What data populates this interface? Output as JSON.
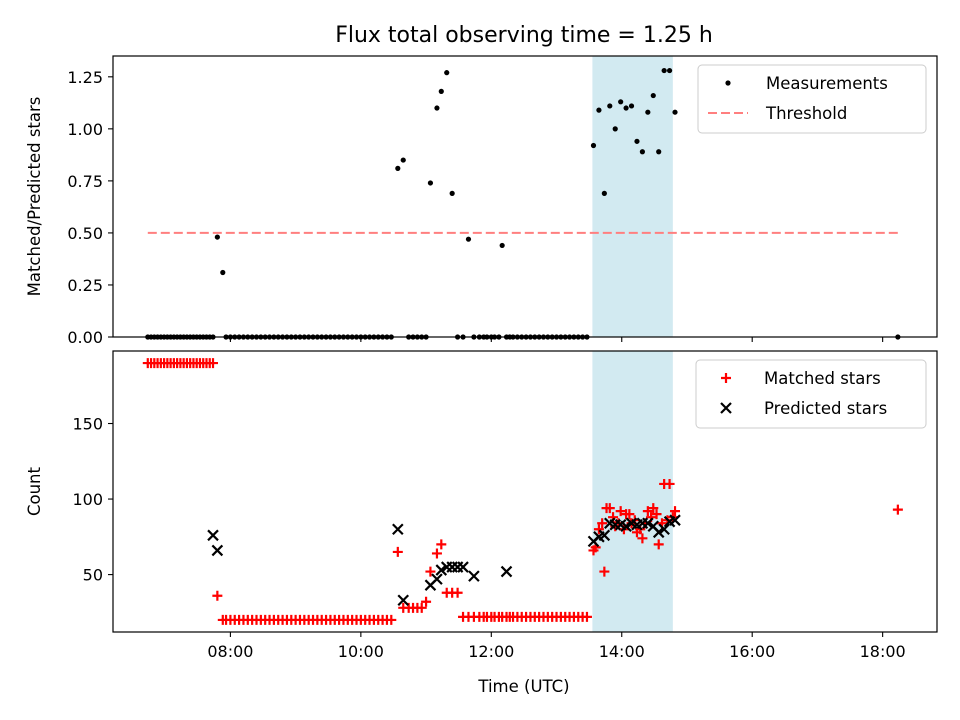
{
  "figure": {
    "title": "Flux total observing time = 1.25 h",
    "xlabel": "Time (UTC)"
  },
  "colors": {
    "measurement": "#000000",
    "threshold": "#ff7f7f",
    "matched": "#ff0000",
    "predicted": "#000000",
    "span": "#add8e6"
  },
  "chart_data": [
    {
      "type": "scatter",
      "ylabel": "Matched/Predicted stars",
      "ylim": [
        0,
        1.35
      ],
      "xlim": [
        "06:12",
        "18:50"
      ],
      "yticks": [
        0.0,
        0.25,
        0.5,
        0.75,
        1.0,
        1.25
      ],
      "ytick_labels": [
        "0.00",
        "0.25",
        "0.50",
        "0.75",
        "1.00",
        "1.25"
      ],
      "highlight_span": [
        "13:33",
        "14:47"
      ],
      "legend": {
        "position": "top-right",
        "entries": [
          "Measurements",
          "Threshold"
        ]
      },
      "threshold": {
        "name": "Threshold",
        "y": 0.5,
        "x_start": "06:44",
        "x_end": "18:14",
        "style": "dashed"
      },
      "series": [
        {
          "name": "Measurements",
          "x": [
            "06:44",
            "06:47",
            "06:50",
            "06:53",
            "06:56",
            "06:59",
            "07:02",
            "07:05",
            "07:08",
            "07:11",
            "07:14",
            "07:17",
            "07:20",
            "07:23",
            "07:26",
            "07:29",
            "07:32",
            "07:35",
            "07:38",
            "07:41",
            "07:44",
            "07:48",
            "07:53",
            "07:56",
            "08:00",
            "08:04",
            "08:08",
            "08:12",
            "08:16",
            "08:20",
            "08:24",
            "08:28",
            "08:32",
            "08:36",
            "08:40",
            "08:44",
            "08:48",
            "08:52",
            "08:56",
            "09:00",
            "09:04",
            "09:08",
            "09:12",
            "09:16",
            "09:20",
            "09:24",
            "09:28",
            "09:32",
            "09:36",
            "09:40",
            "09:44",
            "09:48",
            "09:52",
            "09:56",
            "10:00",
            "10:04",
            "10:08",
            "10:12",
            "10:16",
            "10:20",
            "10:24",
            "10:28",
            "10:34",
            "10:39",
            "10:44",
            "10:48",
            "10:52",
            "10:56",
            "11:00",
            "11:04",
            "11:10",
            "11:14",
            "11:19",
            "11:24",
            "11:29",
            "11:34",
            "11:39",
            "11:44",
            "11:49",
            "11:53",
            "11:56",
            "12:00",
            "12:03",
            "12:07",
            "12:10",
            "12:14",
            "12:17",
            "12:20",
            "12:24",
            "12:28",
            "12:32",
            "12:36",
            "12:40",
            "12:44",
            "12:48",
            "12:52",
            "12:56",
            "13:00",
            "13:04",
            "13:08",
            "13:12",
            "13:16",
            "13:20",
            "13:24",
            "13:28",
            "13:34",
            "13:39",
            "13:44",
            "13:49",
            "13:54",
            "13:59",
            "14:04",
            "14:09",
            "14:14",
            "14:19",
            "14:24",
            "14:29",
            "14:34",
            "14:39",
            "14:44",
            "14:49",
            "18:14"
          ],
          "y": [
            0,
            0,
            0,
            0,
            0,
            0,
            0,
            0,
            0,
            0,
            0,
            0,
            0,
            0,
            0,
            0,
            0,
            0,
            0,
            0,
            0,
            0.48,
            0.31,
            0,
            0,
            0,
            0,
            0,
            0,
            0,
            0,
            0,
            0,
            0,
            0,
            0,
            0,
            0,
            0,
            0,
            0,
            0,
            0,
            0,
            0,
            0,
            0,
            0,
            0,
            0,
            0,
            0,
            0,
            0,
            0,
            0,
            0,
            0,
            0,
            0,
            0,
            0,
            0.81,
            0.85,
            0,
            0,
            0,
            0,
            0,
            0.74,
            1.1,
            1.18,
            1.27,
            0.69,
            0,
            0,
            0.47,
            0,
            0,
            0,
            0,
            0,
            0,
            0,
            0.44,
            0,
            0,
            0,
            0,
            0,
            0,
            0,
            0,
            0,
            0,
            0,
            0,
            0,
            0,
            0,
            0,
            0,
            0,
            0,
            0,
            0.92,
            1.09,
            0.69,
            1.11,
            1.0,
            1.13,
            1.1,
            1.11,
            0.94,
            0.89,
            1.08,
            1.16,
            0.89,
            1.28,
            1.28,
            1.08,
            0
          ]
        }
      ]
    },
    {
      "type": "scatter",
      "ylabel": "Count",
      "ylim": [
        12,
        198
      ],
      "xlim": [
        "06:12",
        "18:50"
      ],
      "yticks": [
        50,
        100,
        150
      ],
      "ytick_labels": [
        "50",
        "100",
        "150"
      ],
      "xticks": [
        "08:00",
        "10:00",
        "12:00",
        "14:00",
        "16:00",
        "18:00"
      ],
      "xtick_labels": [
        "08:00",
        "10:00",
        "12:00",
        "14:00",
        "16:00",
        "18:00"
      ],
      "highlight_span": [
        "13:33",
        "14:47"
      ],
      "legend": {
        "position": "top-right",
        "entries": [
          "Matched stars",
          "Predicted stars"
        ]
      },
      "series": [
        {
          "name": "Matched stars",
          "marker": "plus",
          "x": [
            "06:44",
            "06:47",
            "06:50",
            "06:53",
            "06:56",
            "06:59",
            "07:02",
            "07:05",
            "07:08",
            "07:11",
            "07:14",
            "07:17",
            "07:20",
            "07:23",
            "07:26",
            "07:29",
            "07:32",
            "07:35",
            "07:38",
            "07:41",
            "07:44",
            "07:48",
            "07:53",
            "07:56",
            "08:00",
            "08:04",
            "08:08",
            "08:12",
            "08:16",
            "08:20",
            "08:24",
            "08:28",
            "08:32",
            "08:36",
            "08:40",
            "08:44",
            "08:48",
            "08:52",
            "08:56",
            "09:00",
            "09:04",
            "09:08",
            "09:12",
            "09:16",
            "09:20",
            "09:24",
            "09:28",
            "09:32",
            "09:36",
            "09:40",
            "09:44",
            "09:48",
            "09:52",
            "09:56",
            "10:00",
            "10:04",
            "10:08",
            "10:12",
            "10:16",
            "10:20",
            "10:24",
            "10:28",
            "10:34",
            "10:39",
            "10:44",
            "10:48",
            "10:52",
            "10:56",
            "11:00",
            "11:04",
            "11:10",
            "11:14",
            "11:19",
            "11:24",
            "11:29",
            "11:34",
            "11:39",
            "11:44",
            "11:49",
            "11:53",
            "11:56",
            "12:00",
            "12:03",
            "12:07",
            "12:10",
            "12:14",
            "12:17",
            "12:20",
            "12:24",
            "12:28",
            "12:32",
            "12:36",
            "12:40",
            "12:44",
            "12:48",
            "12:52",
            "12:56",
            "13:00",
            "13:04",
            "13:08",
            "13:12",
            "13:16",
            "13:20",
            "13:24",
            "13:28",
            "13:34",
            "13:39",
            "13:44",
            "13:49",
            "13:54",
            "13:59",
            "14:04",
            "14:09",
            "14:14",
            "14:19",
            "14:24",
            "14:29",
            "14:34",
            "14:39",
            "14:44",
            "14:49",
            "18:14",
            "13:36",
            "13:42",
            "13:46",
            "13:52",
            "13:57",
            "14:02",
            "14:07",
            "14:12",
            "14:17",
            "14:22",
            "14:27",
            "14:32",
            "14:37",
            "14:42",
            "14:47"
          ],
          "y": [
            190,
            190,
            190,
            190,
            190,
            190,
            190,
            190,
            190,
            190,
            190,
            190,
            190,
            190,
            190,
            190,
            190,
            190,
            190,
            190,
            190,
            36,
            20,
            20,
            20,
            20,
            20,
            20,
            20,
            20,
            20,
            20,
            20,
            20,
            20,
            20,
            20,
            20,
            20,
            20,
            20,
            20,
            20,
            20,
            20,
            20,
            20,
            20,
            20,
            20,
            20,
            20,
            20,
            20,
            20,
            20,
            20,
            20,
            20,
            20,
            20,
            20,
            65,
            28,
            28,
            28,
            28,
            28,
            32,
            52,
            64,
            70,
            38,
            38,
            38,
            22,
            22,
            22,
            22,
            22,
            22,
            22,
            22,
            22,
            22,
            22,
            22,
            22,
            22,
            22,
            22,
            22,
            22,
            22,
            22,
            22,
            22,
            22,
            22,
            22,
            22,
            22,
            22,
            22,
            22,
            66,
            80,
            52,
            94,
            82,
            92,
            90,
            84,
            78,
            74,
            92,
            94,
            70,
            110,
            110,
            92,
            93,
            68,
            84,
            94,
            88,
            84,
            80,
            90,
            86,
            80,
            84,
            88,
            90,
            84,
            86,
            88
          ]
        },
        {
          "name": "Predicted stars",
          "marker": "x",
          "x": [
            "07:44",
            "07:48",
            "10:34",
            "10:39",
            "11:04",
            "11:10",
            "11:14",
            "11:19",
            "11:24",
            "11:29",
            "11:34",
            "11:44",
            "12:14",
            "13:34",
            "13:39",
            "13:44",
            "13:49",
            "13:54",
            "13:59",
            "14:04",
            "14:09",
            "14:14",
            "14:19",
            "14:24",
            "14:29",
            "14:34",
            "14:39",
            "14:44",
            "14:49"
          ],
          "y": [
            76,
            66,
            80,
            33,
            43,
            47,
            53,
            55,
            55,
            55,
            55,
            49,
            52,
            72,
            75,
            76,
            84,
            83,
            83,
            82,
            84,
            83,
            84,
            84,
            82,
            78,
            80,
            85,
            86
          ]
        }
      ]
    }
  ]
}
